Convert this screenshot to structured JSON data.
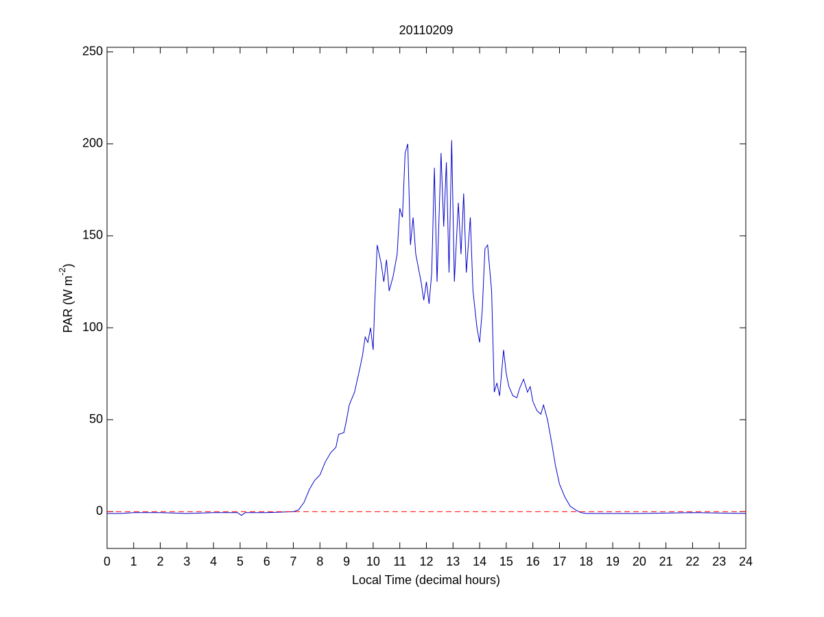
{
  "chart_data": {
    "type": "line",
    "title": "20110209",
    "xlabel": "Local Time (decimal hours)",
    "ylabel_parts": [
      "PAR (W m",
      "-2",
      ")"
    ],
    "x": [
      0,
      0.5,
      1,
      2,
      3,
      4,
      4.9,
      5.05,
      5.2,
      6,
      7,
      7.2,
      7.4,
      7.6,
      7.8,
      8.0,
      8.2,
      8.4,
      8.6,
      8.7,
      8.9,
      9.0,
      9.1,
      9.3,
      9.5,
      9.6,
      9.7,
      9.8,
      9.9,
      10.0,
      10.05,
      10.15,
      10.3,
      10.4,
      10.5,
      10.6,
      10.75,
      10.9,
      11.0,
      11.1,
      11.2,
      11.3,
      11.4,
      11.5,
      11.6,
      11.8,
      11.9,
      12.0,
      12.1,
      12.2,
      12.3,
      12.4,
      12.55,
      12.65,
      12.75,
      12.85,
      12.95,
      13.05,
      13.2,
      13.3,
      13.4,
      13.5,
      13.65,
      13.75,
      13.9,
      14.0,
      14.1,
      14.2,
      14.3,
      14.45,
      14.55,
      14.65,
      14.75,
      14.9,
      15.0,
      15.1,
      15.25,
      15.4,
      15.5,
      15.65,
      15.8,
      15.9,
      16.0,
      16.15,
      16.3,
      16.4,
      16.55,
      16.7,
      16.85,
      17.0,
      17.2,
      17.4,
      17.6,
      17.8,
      18.0,
      20,
      22,
      24
    ],
    "series": [
      {
        "color": "#0000cc",
        "values": [
          -1,
          -1,
          -0.5,
          -0.5,
          -1,
          -0.5,
          -0.5,
          -2,
          -0.5,
          -0.5,
          0,
          1,
          5,
          12,
          17,
          20,
          27,
          32,
          35,
          42,
          43,
          50,
          58,
          65,
          78,
          85,
          95,
          92,
          100,
          88,
          110,
          145,
          135,
          125,
          137,
          120,
          128,
          140,
          165,
          160,
          195,
          200,
          145,
          160,
          140,
          125,
          115,
          125,
          113,
          130,
          187,
          125,
          195,
          155,
          190,
          130,
          202,
          125,
          168,
          140,
          173,
          130,
          160,
          120,
          100,
          92,
          110,
          143,
          145,
          120,
          65,
          70,
          63,
          88,
          75,
          68,
          63,
          62,
          67,
          72,
          65,
          68,
          60,
          55,
          53,
          58,
          50,
          38,
          25,
          15,
          8,
          3,
          1,
          -0.5,
          -1,
          -1,
          -0.5,
          -1
        ]
      }
    ],
    "reference_line": {
      "y": 0,
      "color": "#ff0000"
    },
    "xlim": [
      0,
      24
    ],
    "xticks": [
      0,
      1,
      2,
      3,
      4,
      5,
      6,
      7,
      8,
      9,
      10,
      11,
      12,
      13,
      14,
      15,
      16,
      17,
      18,
      19,
      20,
      21,
      22,
      23,
      24
    ],
    "ylim": [
      -20,
      252.5
    ],
    "yticks": [
      0,
      50,
      100,
      150,
      200,
      250
    ]
  }
}
